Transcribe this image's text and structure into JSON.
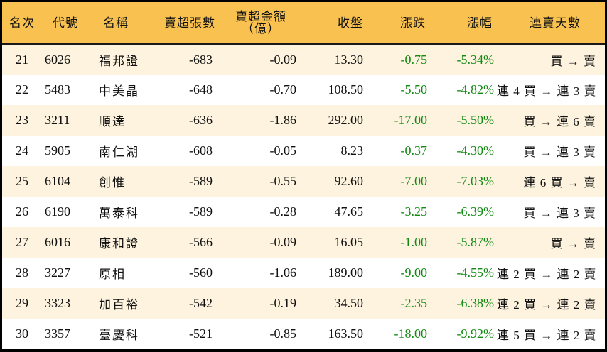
{
  "table": {
    "headers": {
      "rank": "名次",
      "code": "代號",
      "name": "名稱",
      "sell_volume": "賣超張數",
      "sell_amount_line1": "賣超金額",
      "sell_amount_line2": "（億）",
      "close": "收盤",
      "change": "漲跌",
      "change_pct": "漲幅",
      "streak": "連賣天數"
    },
    "colors": {
      "header_bg": "#f8c150",
      "row_odd_bg": "#fdf3de",
      "row_even_bg": "#ffffff",
      "negative_text": "#128a12",
      "border": "#000000"
    },
    "rows": [
      {
        "rank": "21",
        "code": "6026",
        "name": "福邦證",
        "sell_volume": "-683",
        "sell_amount": "-0.09",
        "close": "13.30",
        "change": "-0.75",
        "change_pct": "-5.34%",
        "streak": "買 → 賣"
      },
      {
        "rank": "22",
        "code": "5483",
        "name": "中美晶",
        "sell_volume": "-648",
        "sell_amount": "-0.70",
        "close": "108.50",
        "change": "-5.50",
        "change_pct": "-4.82%",
        "streak": "連 4 買 → 連 3 賣"
      },
      {
        "rank": "23",
        "code": "3211",
        "name": "順達",
        "sell_volume": "-636",
        "sell_amount": "-1.86",
        "close": "292.00",
        "change": "-17.00",
        "change_pct": "-5.50%",
        "streak": "買 → 連 6 賣"
      },
      {
        "rank": "24",
        "code": "5905",
        "name": "南仁湖",
        "sell_volume": "-608",
        "sell_amount": "-0.05",
        "close": "8.23",
        "change": "-0.37",
        "change_pct": "-4.30%",
        "streak": "買 → 連 3 賣"
      },
      {
        "rank": "25",
        "code": "6104",
        "name": "創惟",
        "sell_volume": "-589",
        "sell_amount": "-0.55",
        "close": "92.60",
        "change": "-7.00",
        "change_pct": "-7.03%",
        "streak": "連 6 買 → 賣"
      },
      {
        "rank": "26",
        "code": "6190",
        "name": "萬泰科",
        "sell_volume": "-589",
        "sell_amount": "-0.28",
        "close": "47.65",
        "change": "-3.25",
        "change_pct": "-6.39%",
        "streak": "買 → 連 3 賣"
      },
      {
        "rank": "27",
        "code": "6016",
        "name": "康和證",
        "sell_volume": "-566",
        "sell_amount": "-0.09",
        "close": "16.05",
        "change": "-1.00",
        "change_pct": "-5.87%",
        "streak": "買 → 賣"
      },
      {
        "rank": "28",
        "code": "3227",
        "name": "原相",
        "sell_volume": "-560",
        "sell_amount": "-1.06",
        "close": "189.00",
        "change": "-9.00",
        "change_pct": "-4.55%",
        "streak": "連 2 買 → 連 2 賣"
      },
      {
        "rank": "29",
        "code": "3323",
        "name": "加百裕",
        "sell_volume": "-542",
        "sell_amount": "-0.19",
        "close": "34.50",
        "change": "-2.35",
        "change_pct": "-6.38%",
        "streak": "連 2 買 → 連 2 賣"
      },
      {
        "rank": "30",
        "code": "3357",
        "name": "臺慶科",
        "sell_volume": "-521",
        "sell_amount": "-0.85",
        "close": "163.50",
        "change": "-18.00",
        "change_pct": "-9.92%",
        "streak": "連 5 買 → 連 2 賣"
      }
    ]
  }
}
